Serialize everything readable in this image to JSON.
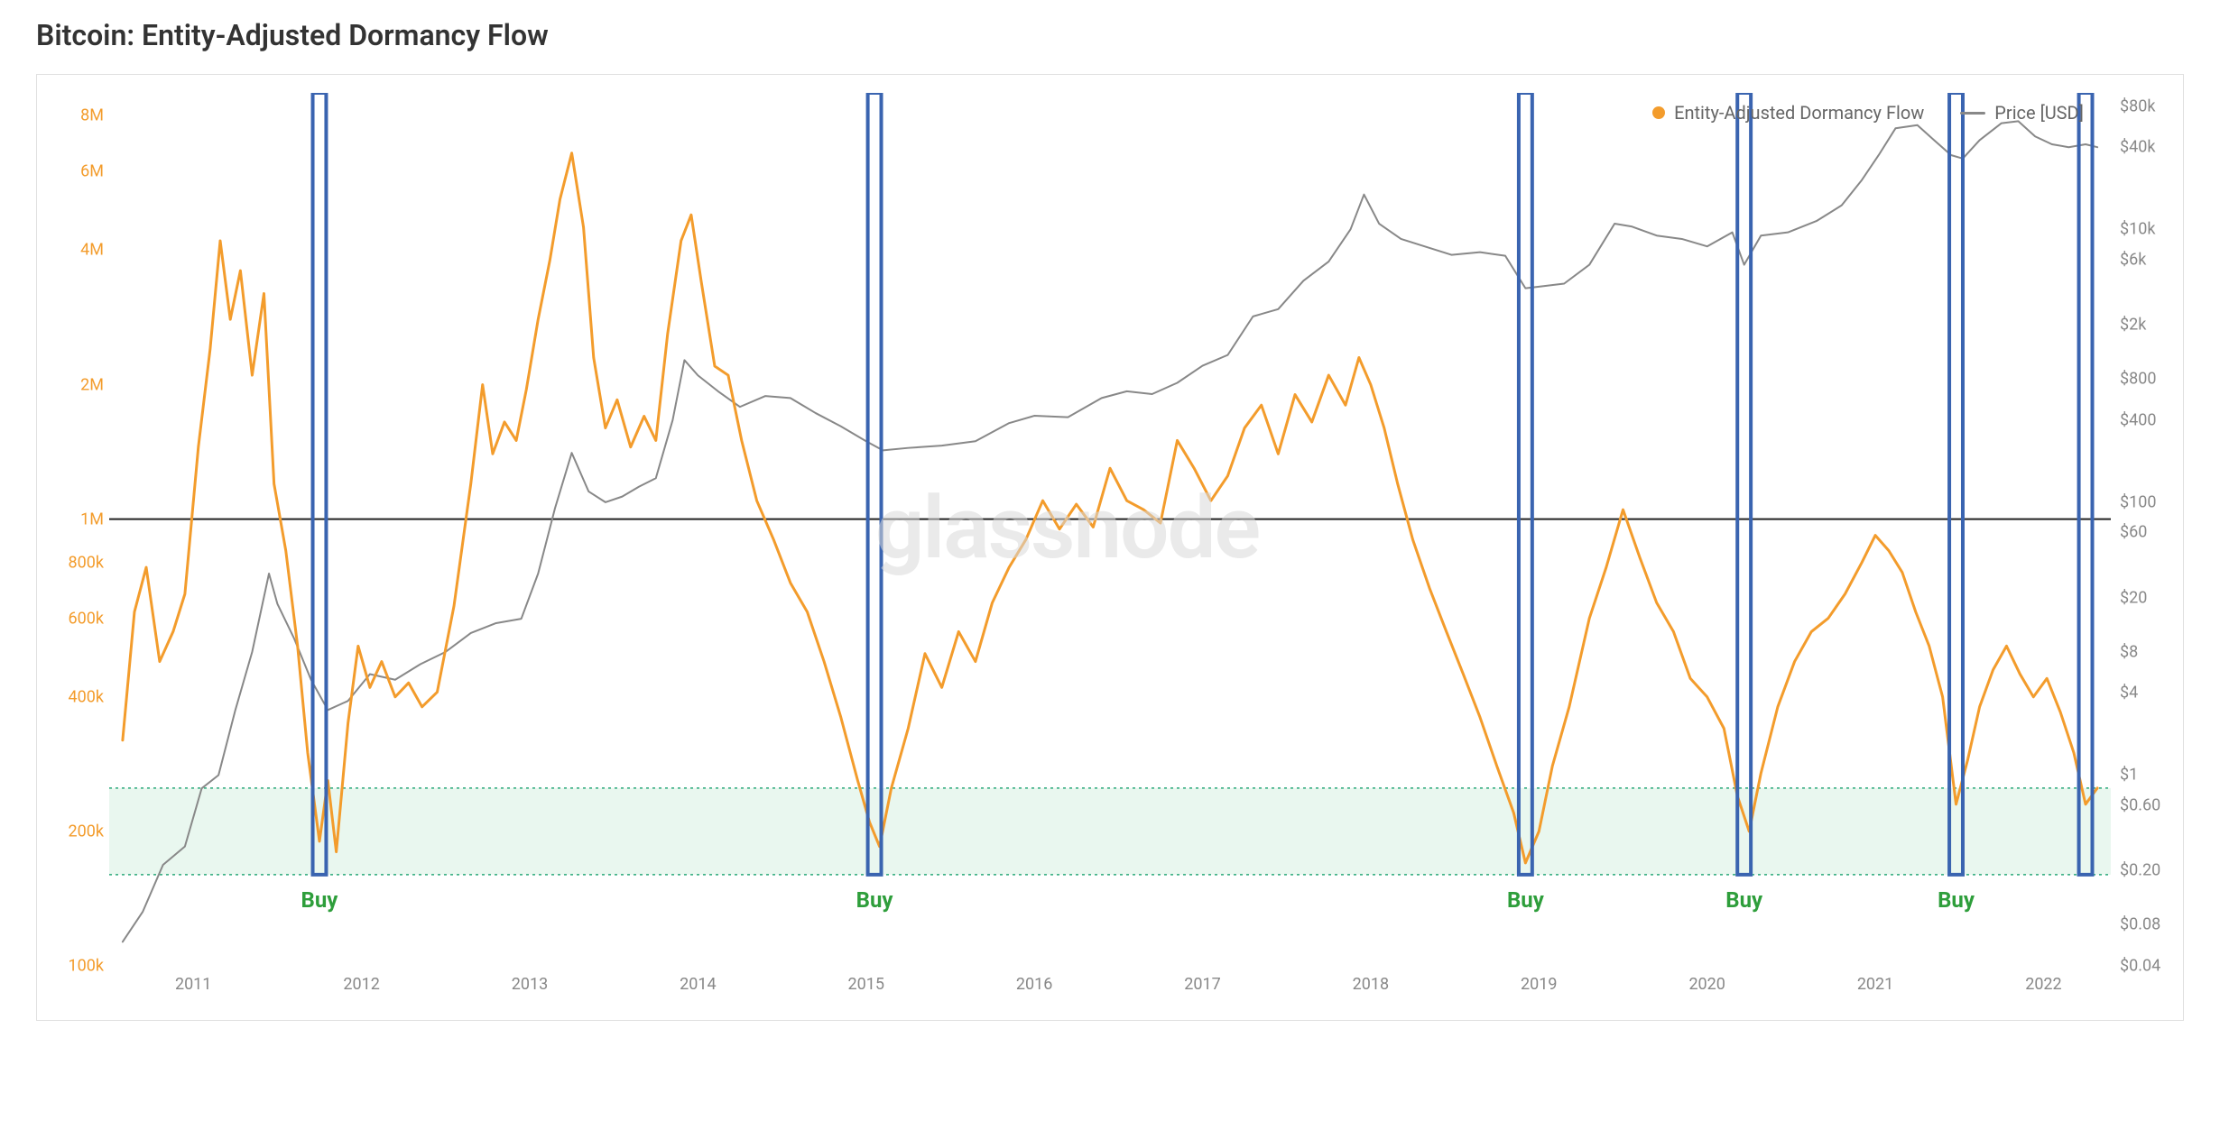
{
  "title": "Bitcoin: Entity-Adjusted Dormancy Flow",
  "watermark": "glassnode",
  "legend": {
    "series1": {
      "label": "Entity-Adjusted Dormancy Flow",
      "color": "#f39c2c",
      "marker": "dot"
    },
    "series2": {
      "label": "Price [USD]",
      "color": "#888888",
      "marker": "line"
    }
  },
  "chart": {
    "background_color": "#ffffff",
    "border_color": "#e0e0e0",
    "x": {
      "min": 2010.5,
      "max": 2022.4,
      "ticks": [
        2011,
        2012,
        2013,
        2014,
        2015,
        2016,
        2017,
        2018,
        2019,
        2020,
        2021,
        2022
      ],
      "color": "#888888",
      "fontsize": 18
    },
    "y_left": {
      "log": true,
      "min": 100000,
      "max": 9000000,
      "ticks": [
        {
          "v": 100000,
          "label": "100k"
        },
        {
          "v": 200000,
          "label": "200k"
        },
        {
          "v": 400000,
          "label": "400k"
        },
        {
          "v": 600000,
          "label": "600k"
        },
        {
          "v": 800000,
          "label": "800k"
        },
        {
          "v": 1000000,
          "label": "1M"
        },
        {
          "v": 2000000,
          "label": "2M"
        },
        {
          "v": 4000000,
          "label": "4M"
        },
        {
          "v": 6000000,
          "label": "6M"
        },
        {
          "v": 8000000,
          "label": "8M"
        }
      ],
      "color": "#f39c2c",
      "fontsize": 18
    },
    "y_right": {
      "log": true,
      "min": 0.04,
      "max": 100000,
      "ticks": [
        {
          "v": 0.04,
          "label": "$0.04"
        },
        {
          "v": 0.08,
          "label": "$0.08"
        },
        {
          "v": 0.2,
          "label": "$0.20"
        },
        {
          "v": 0.6,
          "label": "$0.60"
        },
        {
          "v": 1,
          "label": "$1"
        },
        {
          "v": 4,
          "label": "$4"
        },
        {
          "v": 8,
          "label": "$8"
        },
        {
          "v": 20,
          "label": "$20"
        },
        {
          "v": 60,
          "label": "$60"
        },
        {
          "v": 100,
          "label": "$100"
        },
        {
          "v": 400,
          "label": "$400"
        },
        {
          "v": 800,
          "label": "$800"
        },
        {
          "v": 2000,
          "label": "$2k"
        },
        {
          "v": 6000,
          "label": "$6k"
        },
        {
          "v": 10000,
          "label": "$10k"
        },
        {
          "v": 40000,
          "label": "$40k"
        },
        {
          "v": 80000,
          "label": "$80k"
        }
      ],
      "color": "#888888",
      "fontsize": 18
    },
    "threshold_line": {
      "value": 1000000,
      "color": "#222222",
      "width": 2
    },
    "buy_zone": {
      "min": 160000,
      "max": 250000,
      "fill": "#d4f0e0",
      "fill_opacity": 0.5,
      "border_color": "#2aa87a",
      "border_dash": "3,4",
      "border_width": 1.5
    },
    "buy_markers": {
      "rect_color": "#3a64b0",
      "rect_width_years": 0.08,
      "rect_border_width": 4,
      "label": "Buy",
      "label_color": "#2e9e3b",
      "label_fontsize": 24,
      "positions": [
        2011.75,
        2015.05,
        2018.92,
        2020.22,
        2021.48,
        2022.25
      ],
      "has_label": [
        true,
        true,
        true,
        true,
        true,
        false
      ]
    },
    "dormancy_series": {
      "color": "#f39c2c",
      "width": 3,
      "points": [
        [
          2010.58,
          320000
        ],
        [
          2010.65,
          620000
        ],
        [
          2010.72,
          780000
        ],
        [
          2010.8,
          480000
        ],
        [
          2010.88,
          560000
        ],
        [
          2010.95,
          680000
        ],
        [
          2011.03,
          1450000
        ],
        [
          2011.1,
          2400000
        ],
        [
          2011.16,
          4200000
        ],
        [
          2011.22,
          2800000
        ],
        [
          2011.28,
          3600000
        ],
        [
          2011.35,
          2100000
        ],
        [
          2011.42,
          3200000
        ],
        [
          2011.48,
          1200000
        ],
        [
          2011.55,
          850000
        ],
        [
          2011.62,
          520000
        ],
        [
          2011.68,
          300000
        ],
        [
          2011.75,
          190000
        ],
        [
          2011.8,
          260000
        ],
        [
          2011.85,
          180000
        ],
        [
          2011.92,
          350000
        ],
        [
          2011.98,
          520000
        ],
        [
          2012.05,
          420000
        ],
        [
          2012.12,
          480000
        ],
        [
          2012.2,
          400000
        ],
        [
          2012.28,
          430000
        ],
        [
          2012.36,
          380000
        ],
        [
          2012.45,
          410000
        ],
        [
          2012.55,
          640000
        ],
        [
          2012.65,
          1200000
        ],
        [
          2012.72,
          2000000
        ],
        [
          2012.78,
          1400000
        ],
        [
          2012.85,
          1650000
        ],
        [
          2012.92,
          1500000
        ],
        [
          2012.98,
          1950000
        ],
        [
          2013.05,
          2800000
        ],
        [
          2013.12,
          3800000
        ],
        [
          2013.18,
          5200000
        ],
        [
          2013.25,
          6600000
        ],
        [
          2013.32,
          4500000
        ],
        [
          2013.38,
          2300000
        ],
        [
          2013.45,
          1600000
        ],
        [
          2013.52,
          1850000
        ],
        [
          2013.6,
          1450000
        ],
        [
          2013.68,
          1700000
        ],
        [
          2013.75,
          1500000
        ],
        [
          2013.82,
          2600000
        ],
        [
          2013.9,
          4200000
        ],
        [
          2013.96,
          4800000
        ],
        [
          2014.02,
          3400000
        ],
        [
          2014.1,
          2200000
        ],
        [
          2014.18,
          2100000
        ],
        [
          2014.26,
          1500000
        ],
        [
          2014.35,
          1100000
        ],
        [
          2014.45,
          900000
        ],
        [
          2014.55,
          720000
        ],
        [
          2014.65,
          620000
        ],
        [
          2014.75,
          480000
        ],
        [
          2014.85,
          360000
        ],
        [
          2014.95,
          260000
        ],
        [
          2015.02,
          210000
        ],
        [
          2015.08,
          185000
        ],
        [
          2015.15,
          250000
        ],
        [
          2015.25,
          340000
        ],
        [
          2015.35,
          500000
        ],
        [
          2015.45,
          420000
        ],
        [
          2015.55,
          560000
        ],
        [
          2015.65,
          480000
        ],
        [
          2015.75,
          650000
        ],
        [
          2015.85,
          780000
        ],
        [
          2015.95,
          900000
        ],
        [
          2016.05,
          1100000
        ],
        [
          2016.15,
          950000
        ],
        [
          2016.25,
          1080000
        ],
        [
          2016.35,
          960000
        ],
        [
          2016.45,
          1300000
        ],
        [
          2016.55,
          1100000
        ],
        [
          2016.65,
          1050000
        ],
        [
          2016.75,
          980000
        ],
        [
          2016.85,
          1500000
        ],
        [
          2016.95,
          1300000
        ],
        [
          2017.05,
          1100000
        ],
        [
          2017.15,
          1250000
        ],
        [
          2017.25,
          1600000
        ],
        [
          2017.35,
          1800000
        ],
        [
          2017.45,
          1400000
        ],
        [
          2017.55,
          1900000
        ],
        [
          2017.65,
          1650000
        ],
        [
          2017.75,
          2100000
        ],
        [
          2017.85,
          1800000
        ],
        [
          2017.93,
          2300000
        ],
        [
          2018.0,
          2000000
        ],
        [
          2018.08,
          1600000
        ],
        [
          2018.16,
          1200000
        ],
        [
          2018.25,
          900000
        ],
        [
          2018.35,
          700000
        ],
        [
          2018.45,
          560000
        ],
        [
          2018.55,
          450000
        ],
        [
          2018.65,
          360000
        ],
        [
          2018.75,
          280000
        ],
        [
          2018.85,
          220000
        ],
        [
          2018.92,
          170000
        ],
        [
          2019.0,
          200000
        ],
        [
          2019.08,
          280000
        ],
        [
          2019.18,
          380000
        ],
        [
          2019.3,
          600000
        ],
        [
          2019.4,
          780000
        ],
        [
          2019.5,
          1050000
        ],
        [
          2019.6,
          820000
        ],
        [
          2019.7,
          650000
        ],
        [
          2019.8,
          560000
        ],
        [
          2019.9,
          440000
        ],
        [
          2020.0,
          400000
        ],
        [
          2020.1,
          340000
        ],
        [
          2020.18,
          240000
        ],
        [
          2020.25,
          200000
        ],
        [
          2020.32,
          270000
        ],
        [
          2020.42,
          380000
        ],
        [
          2020.52,
          480000
        ],
        [
          2020.62,
          560000
        ],
        [
          2020.72,
          600000
        ],
        [
          2020.82,
          680000
        ],
        [
          2020.92,
          800000
        ],
        [
          2021.0,
          920000
        ],
        [
          2021.08,
          850000
        ],
        [
          2021.16,
          760000
        ],
        [
          2021.24,
          620000
        ],
        [
          2021.32,
          520000
        ],
        [
          2021.4,
          400000
        ],
        [
          2021.48,
          230000
        ],
        [
          2021.55,
          290000
        ],
        [
          2021.62,
          380000
        ],
        [
          2021.7,
          460000
        ],
        [
          2021.78,
          520000
        ],
        [
          2021.86,
          450000
        ],
        [
          2021.94,
          400000
        ],
        [
          2022.02,
          440000
        ],
        [
          2022.1,
          370000
        ],
        [
          2022.18,
          300000
        ],
        [
          2022.25,
          230000
        ],
        [
          2022.32,
          250000
        ]
      ]
    },
    "price_series": {
      "color": "#888888",
      "width": 2,
      "points": [
        [
          2010.58,
          0.06
        ],
        [
          2010.7,
          0.1
        ],
        [
          2010.82,
          0.22
        ],
        [
          2010.95,
          0.3
        ],
        [
          2011.05,
          0.8
        ],
        [
          2011.15,
          1.0
        ],
        [
          2011.25,
          3.0
        ],
        [
          2011.35,
          8.0
        ],
        [
          2011.45,
          30.0
        ],
        [
          2011.5,
          18.0
        ],
        [
          2011.6,
          10.0
        ],
        [
          2011.7,
          5.0
        ],
        [
          2011.8,
          3.0
        ],
        [
          2011.92,
          3.5
        ],
        [
          2012.05,
          5.5
        ],
        [
          2012.2,
          5.0
        ],
        [
          2012.35,
          6.5
        ],
        [
          2012.5,
          8.0
        ],
        [
          2012.65,
          11.0
        ],
        [
          2012.8,
          13.0
        ],
        [
          2012.95,
          14.0
        ],
        [
          2013.05,
          30.0
        ],
        [
          2013.15,
          90.0
        ],
        [
          2013.25,
          230.0
        ],
        [
          2013.35,
          120.0
        ],
        [
          2013.45,
          100.0
        ],
        [
          2013.55,
          110.0
        ],
        [
          2013.65,
          130.0
        ],
        [
          2013.75,
          150.0
        ],
        [
          2013.85,
          400.0
        ],
        [
          2013.92,
          1100.0
        ],
        [
          2014.0,
          850.0
        ],
        [
          2014.12,
          650.0
        ],
        [
          2014.25,
          500.0
        ],
        [
          2014.4,
          600.0
        ],
        [
          2014.55,
          580.0
        ],
        [
          2014.7,
          450.0
        ],
        [
          2014.85,
          360.0
        ],
        [
          2015.0,
          280.0
        ],
        [
          2015.1,
          240.0
        ],
        [
          2015.25,
          250.0
        ],
        [
          2015.45,
          260.0
        ],
        [
          2015.65,
          280.0
        ],
        [
          2015.85,
          380.0
        ],
        [
          2016.0,
          430.0
        ],
        [
          2016.2,
          420.0
        ],
        [
          2016.4,
          580.0
        ],
        [
          2016.55,
          650.0
        ],
        [
          2016.7,
          620.0
        ],
        [
          2016.85,
          750.0
        ],
        [
          2017.0,
          1000.0
        ],
        [
          2017.15,
          1200.0
        ],
        [
          2017.3,
          2300.0
        ],
        [
          2017.45,
          2600.0
        ],
        [
          2017.6,
          4200.0
        ],
        [
          2017.75,
          5800.0
        ],
        [
          2017.88,
          10000.0
        ],
        [
          2017.96,
          18000.0
        ],
        [
          2018.05,
          11000.0
        ],
        [
          2018.18,
          8500.0
        ],
        [
          2018.32,
          7500.0
        ],
        [
          2018.48,
          6500.0
        ],
        [
          2018.65,
          6800.0
        ],
        [
          2018.8,
          6400.0
        ],
        [
          2018.92,
          3700.0
        ],
        [
          2019.0,
          3800.0
        ],
        [
          2019.15,
          4000.0
        ],
        [
          2019.3,
          5500.0
        ],
        [
          2019.45,
          11000.0
        ],
        [
          2019.55,
          10500.0
        ],
        [
          2019.7,
          9000.0
        ],
        [
          2019.85,
          8500.0
        ],
        [
          2020.0,
          7500.0
        ],
        [
          2020.15,
          9500.0
        ],
        [
          2020.22,
          5500.0
        ],
        [
          2020.32,
          9000.0
        ],
        [
          2020.48,
          9500.0
        ],
        [
          2020.65,
          11500.0
        ],
        [
          2020.8,
          15000.0
        ],
        [
          2020.92,
          23000.0
        ],
        [
          2021.02,
          35000.0
        ],
        [
          2021.12,
          55000.0
        ],
        [
          2021.25,
          58000.0
        ],
        [
          2021.35,
          45000.0
        ],
        [
          2021.45,
          35000.0
        ],
        [
          2021.52,
          33000.0
        ],
        [
          2021.62,
          45000.0
        ],
        [
          2021.75,
          60000.0
        ],
        [
          2021.85,
          62000.0
        ],
        [
          2021.95,
          48000.0
        ],
        [
          2022.05,
          42000.0
        ],
        [
          2022.15,
          40000.0
        ],
        [
          2022.25,
          42000.0
        ],
        [
          2022.32,
          40000.0
        ]
      ]
    }
  }
}
